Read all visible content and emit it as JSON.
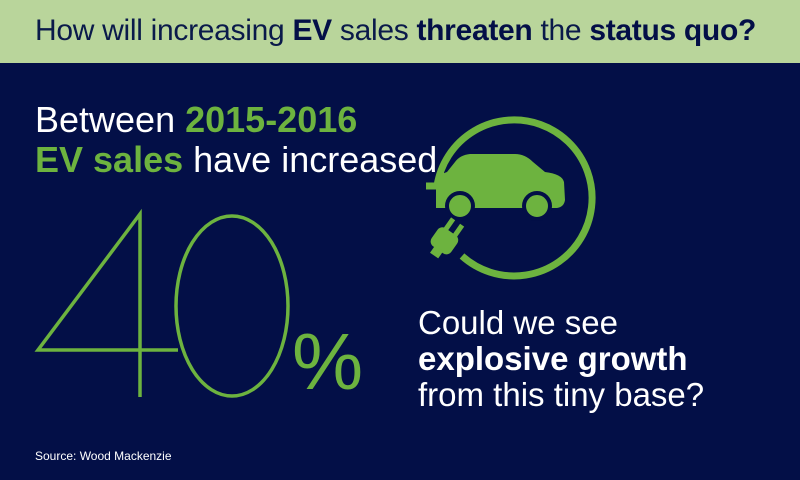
{
  "header": {
    "title_parts": [
      "How will increasing ",
      "EV",
      " sales ",
      "threaten",
      " the ",
      "status quo?"
    ]
  },
  "lead": {
    "line1_prefix": "Between ",
    "years": "2015-2016",
    "ev_sales": "EV sales",
    "line2_suffix": " have increased,"
  },
  "stat": {
    "value": "40",
    "unit": "%"
  },
  "question": {
    "line1": "Could we see",
    "line2": "explosive growth",
    "line3": "from this tiny base?"
  },
  "source": "Source: Wood Mackenzie",
  "icon": "electric-car-plug-icon",
  "colors": {
    "header_bg": "#b9d59b",
    "bg": "#030f47",
    "accent": "#6db33f",
    "text": "#ffffff"
  }
}
